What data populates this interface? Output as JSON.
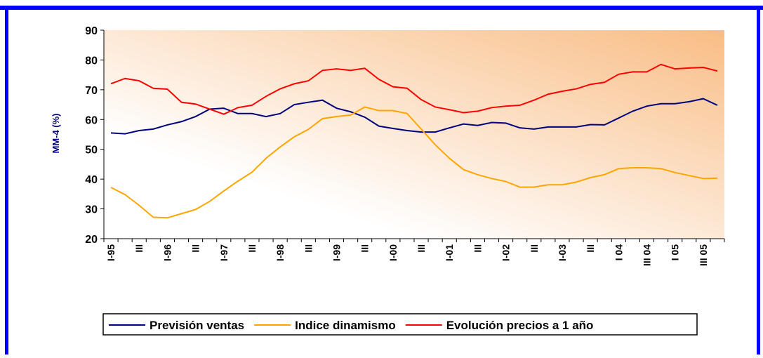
{
  "chart_data": {
    "type": "line",
    "y_label": "MM-4 (%)",
    "categories": [
      "I-95",
      null,
      "III",
      null,
      "I-96",
      null,
      "III",
      null,
      "I-97",
      null,
      "III",
      null,
      "I-98",
      null,
      "III",
      null,
      "I-99",
      null,
      "III",
      null,
      "I-00",
      null,
      "III",
      null,
      "I-01",
      null,
      "III",
      null,
      "I-02",
      null,
      "III",
      null,
      "I-03",
      null,
      "III",
      null,
      "I 04",
      null,
      "III 04",
      null,
      "I 05",
      null,
      "III 05",
      null
    ],
    "series": [
      {
        "name": "Previsión ventas",
        "color": "#000080",
        "values": [
          55.5,
          55.2,
          56.3,
          56.8,
          58.2,
          59.3,
          61,
          63.5,
          63.8,
          62,
          62,
          61,
          62,
          65,
          65.8,
          66.5,
          63.8,
          62.6,
          60.8,
          57.8,
          57,
          56.3,
          55.8,
          55.8,
          57.2,
          58.5,
          58,
          59,
          58.8,
          57.2,
          56.8,
          57.5,
          57.5,
          57.5,
          58.3,
          58.2,
          60.5,
          62.8,
          64.5,
          65.3,
          65.3,
          66,
          67,
          64.8
        ]
      },
      {
        "name": "Indice dinamismo",
        "color": "#ffa500",
        "values": [
          37.2,
          34.8,
          31.2,
          27.2,
          27,
          28.4,
          29.8,
          32.5,
          36,
          39.3,
          42.3,
          47,
          50.8,
          54.2,
          56.7,
          60.3,
          61,
          61.5,
          64.2,
          63,
          63,
          62,
          56.8,
          51.5,
          47,
          43.2,
          41.5,
          40.2,
          39.2,
          37.3,
          37.3,
          38.1,
          38.1,
          39,
          40.5,
          41.5,
          43.5,
          43.8,
          43.8,
          43.5,
          42.2,
          41.2,
          40.2,
          40.3
        ]
      },
      {
        "name": "Evolución precios a 1 año",
        "color": "#ff0000",
        "values": [
          72,
          73.8,
          73,
          70.5,
          70.2,
          65.8,
          65.2,
          63.5,
          61.8,
          64,
          64.8,
          67.8,
          70.3,
          72,
          73,
          76.5,
          77,
          76.5,
          77.2,
          73.5,
          71,
          70.5,
          66.7,
          64.2,
          63.3,
          62.3,
          62.8,
          64,
          64.5,
          64.8,
          66.5,
          68.5,
          69.5,
          70.3,
          71.8,
          72.5,
          75.2,
          76,
          76,
          78.5,
          77,
          77.3,
          77.5,
          76.3
        ]
      }
    ],
    "ylim": [
      20,
      90
    ],
    "yticks": [
      20,
      30,
      40,
      50,
      60,
      70,
      80,
      90
    ],
    "grid": false,
    "legend": "bottom"
  }
}
